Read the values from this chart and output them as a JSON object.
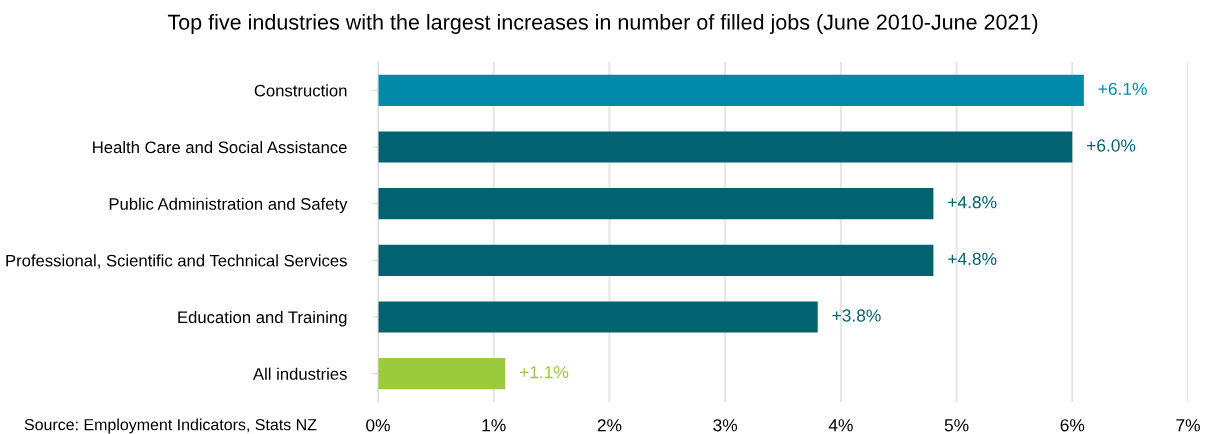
{
  "chart_data": {
    "type": "bar",
    "orientation": "horizontal",
    "title": "Top five industries with the largest increases in number of filled jobs (June 2010-June 2021)",
    "categories": [
      "Construction",
      "Health Care and Social Assistance",
      "Public Administration and Safety",
      "Professional, Scientific and Technical Services",
      "Education and Training",
      "All industries"
    ],
    "values": [
      6.1,
      6.0,
      4.8,
      4.8,
      3.8,
      1.1
    ],
    "colors": [
      "#0089a8",
      "#03626f",
      "#03626f",
      "#03626f",
      "#03626f",
      "#9bcb3c"
    ],
    "value_labels": [
      "+6.1%",
      "+6.0%",
      "+4.8%",
      "+4.8%",
      "+3.8%",
      "+1.1%"
    ],
    "xlim": [
      0,
      7
    ],
    "xticks": [
      {
        "value": 0,
        "label": "0%"
      },
      {
        "value": 1,
        "label": "1%"
      },
      {
        "value": 2,
        "label": "2%"
      },
      {
        "value": 3,
        "label": "3%"
      },
      {
        "value": 4,
        "label": "4%"
      },
      {
        "value": 5,
        "label": "5%"
      },
      {
        "value": 6,
        "label": "6%"
      },
      {
        "value": 7,
        "label": "7%"
      }
    ],
    "grid": "x",
    "annotations": [
      "Source: Employment Indicators, Stats NZ"
    ]
  }
}
